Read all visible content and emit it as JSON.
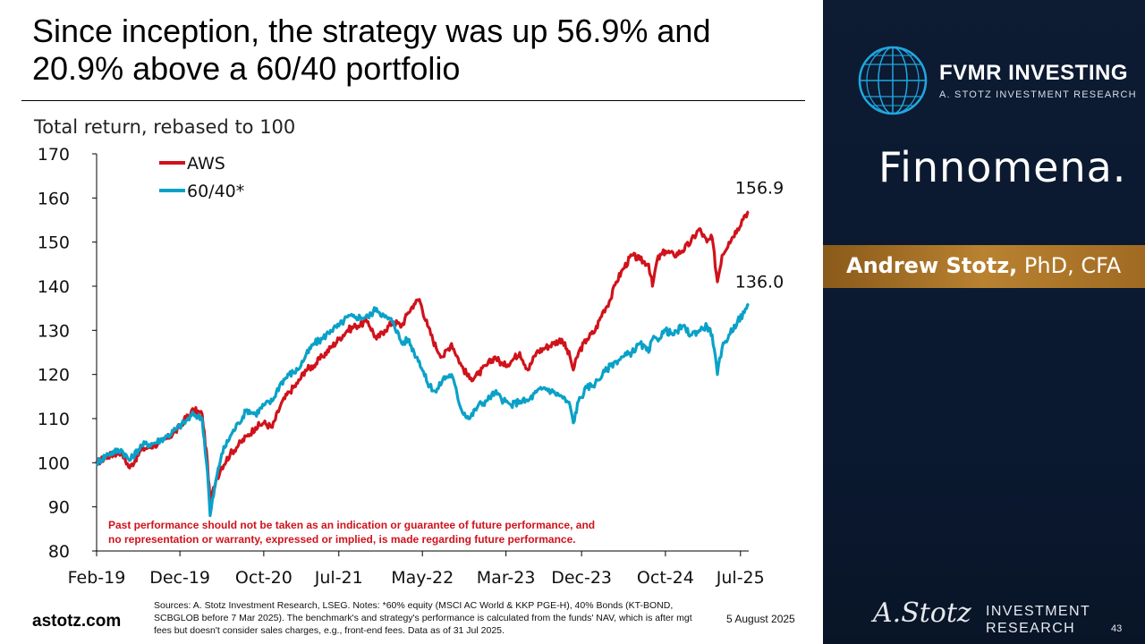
{
  "slide": {
    "title": "Since inception, the strategy was up 56.9% and 20.9% above a 60/40 portfolio",
    "website": "astotz.com",
    "sources": "Sources: A. Stotz Investment Research, LSEG. Notes: *60% equity (MSCI AC World & KKP PGE-H), 40% Bonds (KT-BOND, SCBGLOB before 7 Mar 2025). The benchmark's and strategy's performance is calculated from the funds' NAV, which is after mgt fees but doesn't consider sales charges, e.g., front-end fees. Data as of 31 Jul 2025.",
    "date": "5 August 2025",
    "page_number": "43"
  },
  "sidebar": {
    "brand_name": "FVMR INVESTING",
    "brand_sub": "A. STOTZ INVESTMENT RESEARCH",
    "partner": "Finnomena.",
    "author_name": "Andrew Stotz,",
    "author_credentials": " PhD, CFA",
    "signature": "A.Stotz",
    "ir_line1": "INVESTMENT",
    "ir_line2": "RESEARCH",
    "background_color": "#0b1a30",
    "accent_color": "#b98230"
  },
  "chart_data": {
    "type": "line",
    "title": "Total return, rebased to 100",
    "ylim": [
      80,
      170
    ],
    "yticks": [
      80,
      90,
      100,
      110,
      120,
      130,
      140,
      150,
      160,
      170
    ],
    "xlim": [
      "2019-02-01",
      "2025-07-31"
    ],
    "xticks": [
      {
        "date": "2019-02-01",
        "label": "Feb-19"
      },
      {
        "date": "2019-12-01",
        "label": "Dec-19"
      },
      {
        "date": "2020-10-01",
        "label": "Oct-20"
      },
      {
        "date": "2021-07-01",
        "label": "Jul-21"
      },
      {
        "date": "2022-05-01",
        "label": "May-22"
      },
      {
        "date": "2023-03-01",
        "label": "Mar-23"
      },
      {
        "date": "2023-12-01",
        "label": "Dec-23"
      },
      {
        "date": "2024-10-01",
        "label": "Oct-24"
      },
      {
        "date": "2025-07-01",
        "label": "Jul-25"
      }
    ],
    "legend_position": "top-left",
    "grid": false,
    "series": [
      {
        "name": "AWS",
        "color": "#d0121b",
        "end_label": "156.9",
        "points": [
          [
            "2019-02-01",
            100
          ],
          [
            "2019-03-15",
            101.5
          ],
          [
            "2019-05-01",
            102.5
          ],
          [
            "2019-06-01",
            98.8
          ],
          [
            "2019-07-15",
            103
          ],
          [
            "2019-09-01",
            104
          ],
          [
            "2019-10-15",
            105.5
          ],
          [
            "2019-11-15",
            107
          ],
          [
            "2019-12-15",
            109.5
          ],
          [
            "2020-01-20",
            112
          ],
          [
            "2020-02-20",
            111
          ],
          [
            "2020-03-10",
            100
          ],
          [
            "2020-03-20",
            91
          ],
          [
            "2020-04-10",
            96
          ],
          [
            "2020-05-01",
            99
          ],
          [
            "2020-06-01",
            102
          ],
          [
            "2020-07-01",
            104
          ],
          [
            "2020-08-01",
            106
          ],
          [
            "2020-09-01",
            108
          ],
          [
            "2020-10-01",
            109
          ],
          [
            "2020-11-01",
            108
          ],
          [
            "2020-12-01",
            113
          ],
          [
            "2021-01-01",
            116
          ],
          [
            "2021-02-01",
            118
          ],
          [
            "2021-03-01",
            121
          ],
          [
            "2021-04-01",
            122
          ],
          [
            "2021-05-01",
            124
          ],
          [
            "2021-06-01",
            126
          ],
          [
            "2021-07-01",
            128
          ],
          [
            "2021-08-01",
            130
          ],
          [
            "2021-09-01",
            131
          ],
          [
            "2021-10-15",
            132
          ],
          [
            "2021-11-15",
            128
          ],
          [
            "2021-12-15",
            130
          ],
          [
            "2022-01-15",
            132
          ],
          [
            "2022-02-15",
            131
          ],
          [
            "2022-03-10",
            134
          ],
          [
            "2022-04-01",
            136
          ],
          [
            "2022-04-20",
            137
          ],
          [
            "2022-05-20",
            131
          ],
          [
            "2022-06-20",
            126
          ],
          [
            "2022-07-15",
            124
          ],
          [
            "2022-08-15",
            127
          ],
          [
            "2022-09-20",
            122
          ],
          [
            "2022-10-20",
            119
          ],
          [
            "2022-11-20",
            120
          ],
          [
            "2022-12-20",
            122
          ],
          [
            "2023-01-20",
            124
          ],
          [
            "2023-02-20",
            122
          ],
          [
            "2023-03-20",
            123
          ],
          [
            "2023-04-20",
            125
          ],
          [
            "2023-05-20",
            121
          ],
          [
            "2023-06-20",
            125
          ],
          [
            "2023-07-20",
            126
          ],
          [
            "2023-08-20",
            127
          ],
          [
            "2023-09-20",
            128
          ],
          [
            "2023-10-20",
            124
          ],
          [
            "2023-11-01",
            121
          ],
          [
            "2023-11-20",
            125
          ],
          [
            "2023-12-20",
            128
          ],
          [
            "2024-01-20",
            130
          ],
          [
            "2024-02-15",
            134
          ],
          [
            "2024-03-15",
            137
          ],
          [
            "2024-04-05",
            141
          ],
          [
            "2024-05-01",
            144
          ],
          [
            "2024-06-01",
            147
          ],
          [
            "2024-07-01",
            146
          ],
          [
            "2024-08-01",
            145
          ],
          [
            "2024-08-15",
            140
          ],
          [
            "2024-09-01",
            146
          ],
          [
            "2024-10-01",
            148
          ],
          [
            "2024-11-01",
            147
          ],
          [
            "2024-12-01",
            148
          ],
          [
            "2025-01-01",
            150
          ],
          [
            "2025-02-01",
            153
          ],
          [
            "2025-03-01",
            150
          ],
          [
            "2025-03-20",
            151
          ],
          [
            "2025-04-08",
            141
          ],
          [
            "2025-04-25",
            147
          ],
          [
            "2025-05-20",
            150
          ],
          [
            "2025-06-20",
            153
          ],
          [
            "2025-07-15",
            156
          ],
          [
            "2025-07-31",
            156.9
          ]
        ]
      },
      {
        "name": "60/40*",
        "color": "#0aa1c8",
        "end_label": "136.0",
        "points": [
          [
            "2019-02-01",
            100
          ],
          [
            "2019-03-15",
            102
          ],
          [
            "2019-05-01",
            103
          ],
          [
            "2019-06-01",
            100.5
          ],
          [
            "2019-07-15",
            104
          ],
          [
            "2019-09-01",
            104.5
          ],
          [
            "2019-10-15",
            106
          ],
          [
            "2019-11-15",
            107.5
          ],
          [
            "2019-12-15",
            109
          ],
          [
            "2020-01-20",
            111
          ],
          [
            "2020-02-20",
            110
          ],
          [
            "2020-03-10",
            98
          ],
          [
            "2020-03-20",
            88
          ],
          [
            "2020-04-10",
            96
          ],
          [
            "2020-05-01",
            102
          ],
          [
            "2020-06-01",
            106
          ],
          [
            "2020-07-01",
            109
          ],
          [
            "2020-08-01",
            112
          ],
          [
            "2020-09-01",
            111
          ],
          [
            "2020-10-01",
            113
          ],
          [
            "2020-11-01",
            114
          ],
          [
            "2020-12-01",
            118
          ],
          [
            "2021-01-01",
            120
          ],
          [
            "2021-02-01",
            121
          ],
          [
            "2021-03-01",
            124
          ],
          [
            "2021-04-01",
            127
          ],
          [
            "2021-05-01",
            128
          ],
          [
            "2021-06-01",
            130
          ],
          [
            "2021-07-01",
            131
          ],
          [
            "2021-08-01",
            133
          ],
          [
            "2021-09-01",
            133
          ],
          [
            "2021-10-15",
            133
          ],
          [
            "2021-11-15",
            135
          ],
          [
            "2021-12-15",
            133
          ],
          [
            "2022-01-15",
            132
          ],
          [
            "2022-02-15",
            127
          ],
          [
            "2022-03-10",
            128
          ],
          [
            "2022-04-01",
            125
          ],
          [
            "2022-04-20",
            123
          ],
          [
            "2022-05-20",
            118
          ],
          [
            "2022-06-20",
            116
          ],
          [
            "2022-07-15",
            119
          ],
          [
            "2022-08-15",
            120
          ],
          [
            "2022-09-20",
            112
          ],
          [
            "2022-10-20",
            110
          ],
          [
            "2022-11-20",
            113
          ],
          [
            "2022-12-20",
            114
          ],
          [
            "2023-01-20",
            116
          ],
          [
            "2023-02-20",
            114
          ],
          [
            "2023-03-20",
            113
          ],
          [
            "2023-04-20",
            114
          ],
          [
            "2023-05-20",
            114
          ],
          [
            "2023-06-20",
            116
          ],
          [
            "2023-07-20",
            117
          ],
          [
            "2023-08-20",
            116
          ],
          [
            "2023-09-20",
            115
          ],
          [
            "2023-10-20",
            113
          ],
          [
            "2023-11-01",
            109
          ],
          [
            "2023-11-20",
            114
          ],
          [
            "2023-12-20",
            117
          ],
          [
            "2024-01-20",
            118
          ],
          [
            "2024-02-15",
            120
          ],
          [
            "2024-03-15",
            122
          ],
          [
            "2024-04-05",
            123
          ],
          [
            "2024-05-01",
            124
          ],
          [
            "2024-06-01",
            125
          ],
          [
            "2024-07-01",
            127
          ],
          [
            "2024-08-01",
            125
          ],
          [
            "2024-08-15",
            128
          ],
          [
            "2024-09-01",
            128
          ],
          [
            "2024-10-01",
            130
          ],
          [
            "2024-11-01",
            129
          ],
          [
            "2024-12-01",
            131
          ],
          [
            "2025-01-01",
            129
          ],
          [
            "2025-02-01",
            130
          ],
          [
            "2025-03-01",
            131
          ],
          [
            "2025-03-20",
            129
          ],
          [
            "2025-04-08",
            120
          ],
          [
            "2025-04-25",
            126
          ],
          [
            "2025-05-20",
            129
          ],
          [
            "2025-06-20",
            132
          ],
          [
            "2025-07-15",
            134
          ],
          [
            "2025-07-31",
            136
          ]
        ]
      }
    ],
    "disclaimer": "Past performance should not be taken as an indication or guarantee of future performance, and no representation or warranty, expressed or implied, is made regarding future performance."
  }
}
